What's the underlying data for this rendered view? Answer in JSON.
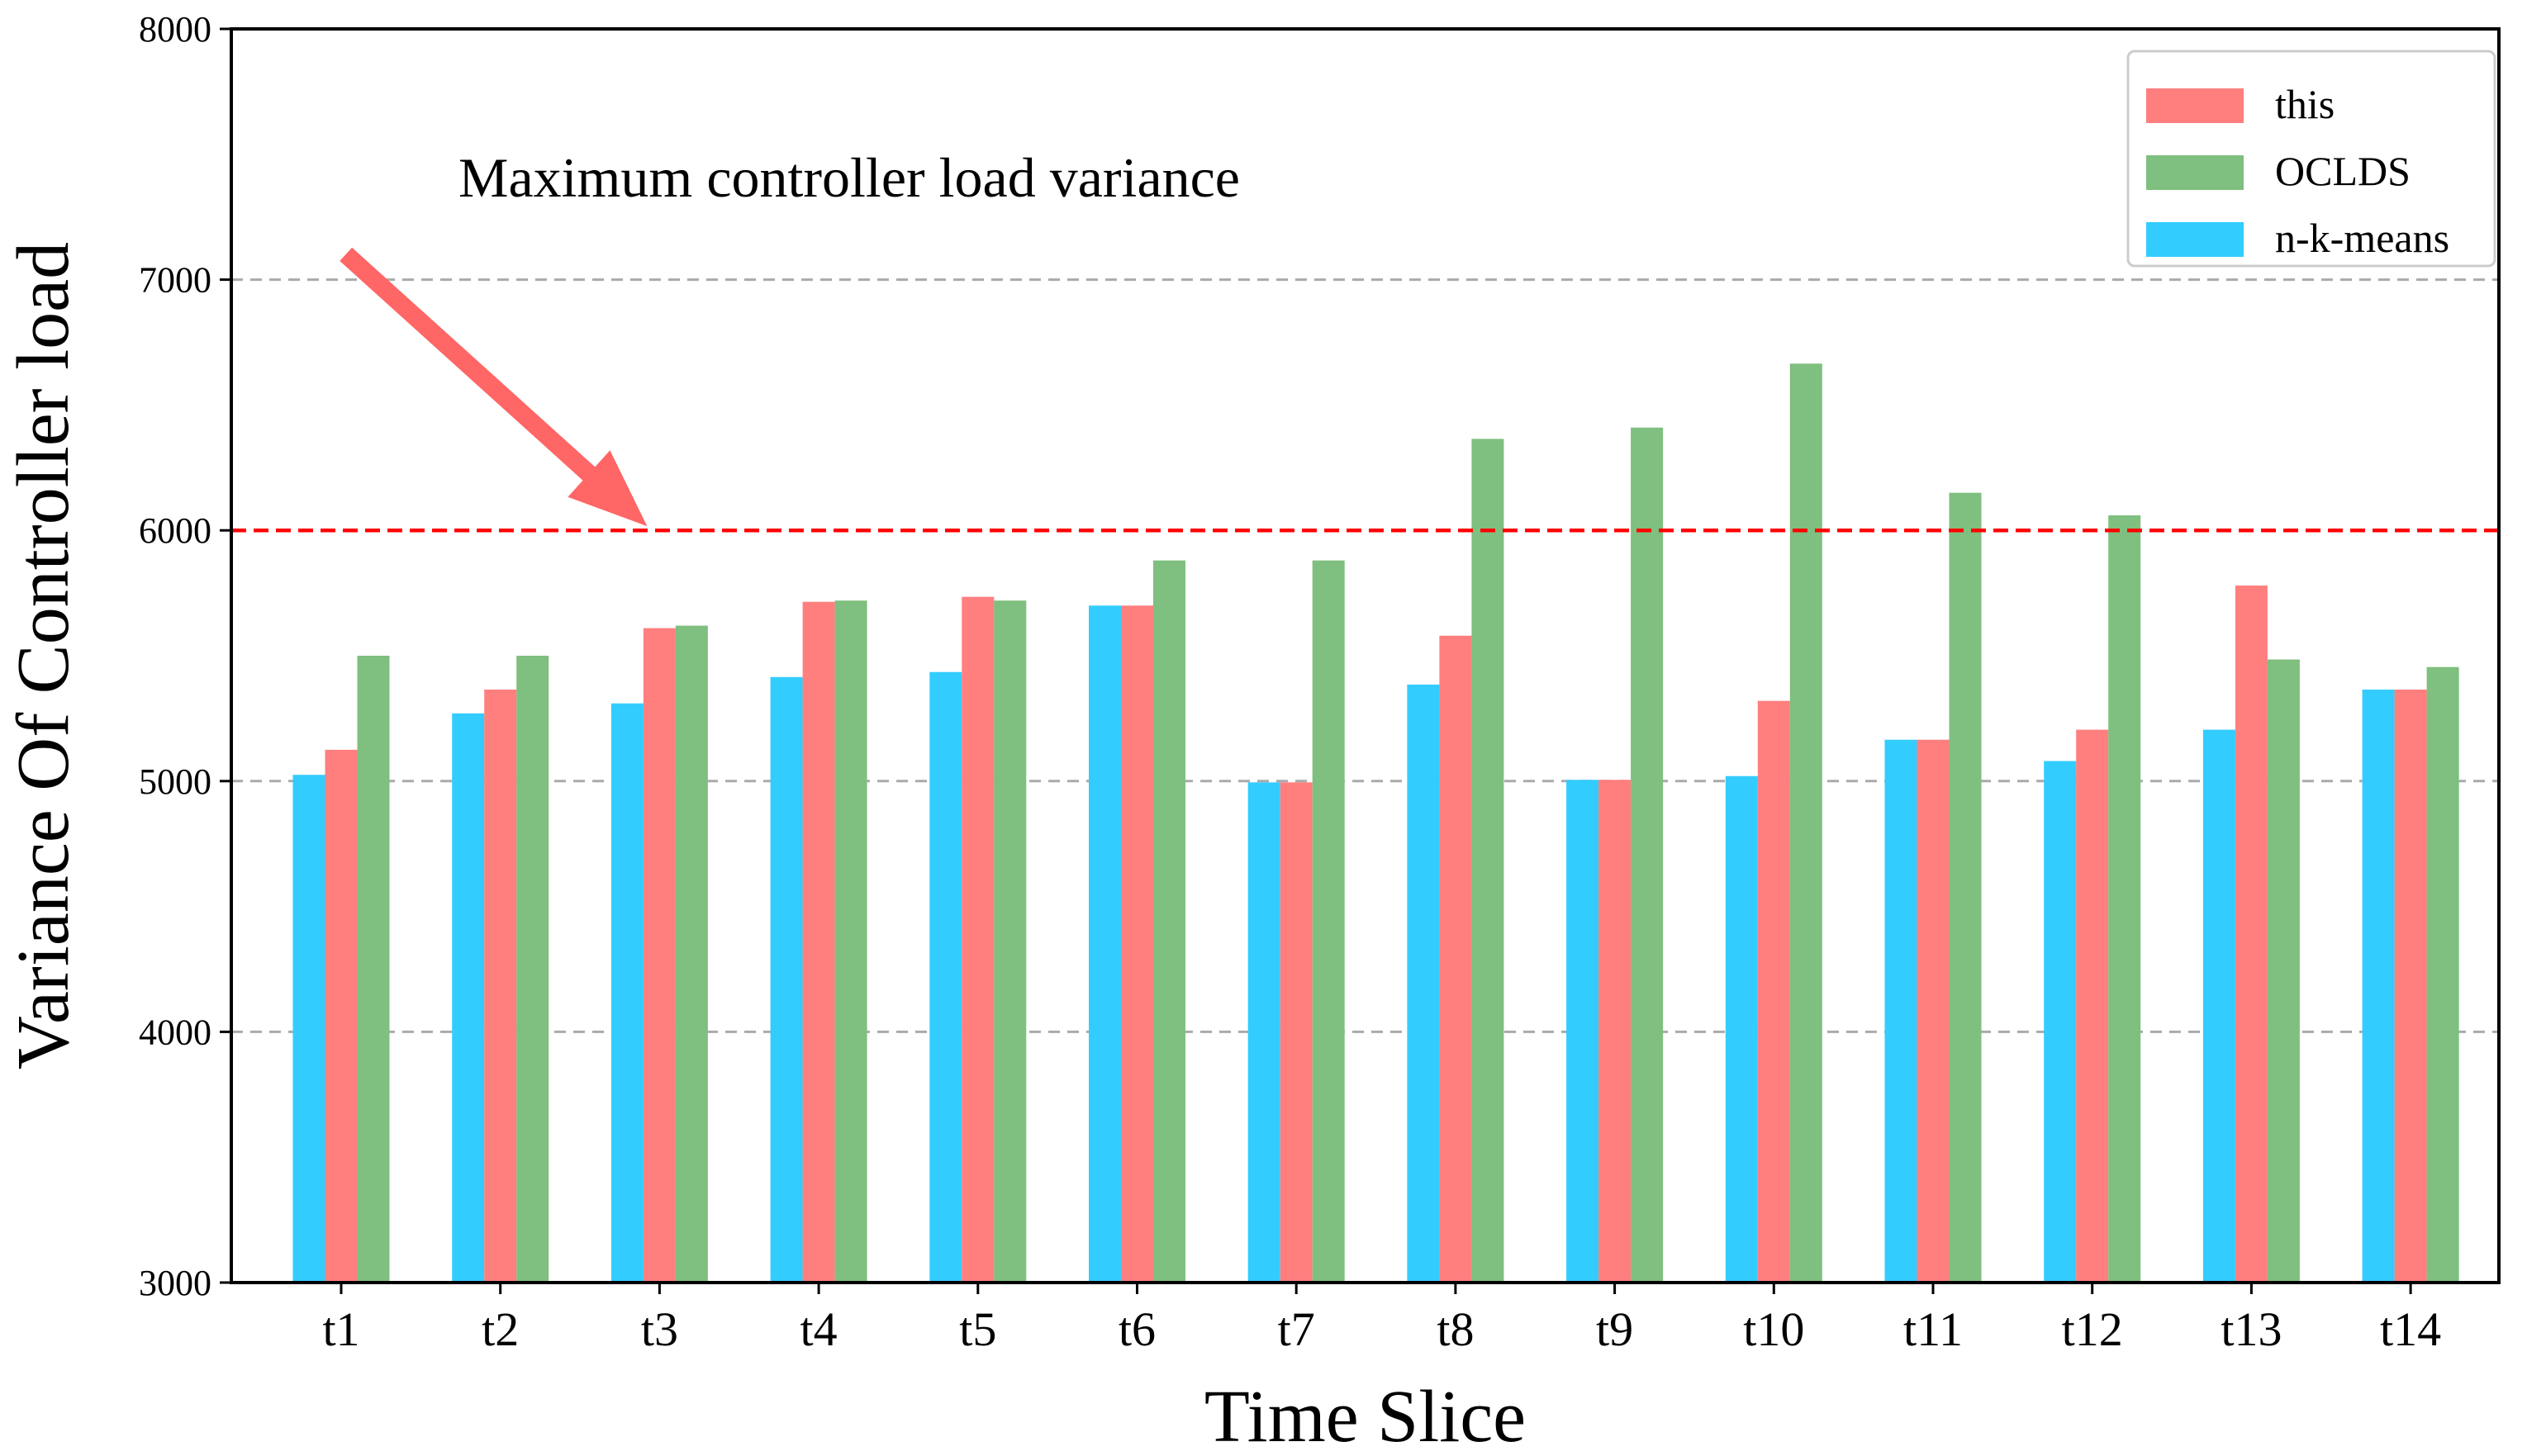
{
  "chart_data": {
    "type": "bar",
    "title": "",
    "xlabel": "Time Slice",
    "ylabel": "Variance Of Controller load",
    "ylim": [
      3000,
      8000
    ],
    "yticks": [
      3000,
      4000,
      5000,
      6000,
      7000,
      8000
    ],
    "grid_lines": [
      4000,
      5000,
      7000
    ],
    "grid": "dashed horizontal at 4000, 5000, 7000",
    "categories": [
      "t1",
      "t2",
      "t3",
      "t4",
      "t5",
      "t6",
      "t7",
      "t8",
      "t9",
      "t10",
      "t11",
      "t12",
      "t13",
      "t14"
    ],
    "series": [
      {
        "name": "n-k-means",
        "color": "#33ccff",
        "values": [
          5025,
          5270,
          5310,
          5415,
          5435,
          5700,
          4995,
          5385,
          5005,
          5020,
          5165,
          5080,
          5205,
          5365
        ]
      },
      {
        "name": "this",
        "color": "#ff7f7f",
        "values": [
          5125,
          5365,
          5610,
          5715,
          5735,
          5700,
          4995,
          5580,
          5005,
          5320,
          5165,
          5205,
          5780,
          5365
        ]
      },
      {
        "name": "OCLDS",
        "color": "#7fbf7f",
        "values": [
          5500,
          5500,
          5620,
          5720,
          5720,
          5880,
          5880,
          6365,
          6410,
          6665,
          6150,
          6060,
          5485,
          5455
        ]
      }
    ],
    "legend": {
      "position": "top-right",
      "order": [
        "this",
        "OCLDS",
        "n-k-means"
      ]
    },
    "threshold": {
      "value": 6000,
      "color": "#ff0000",
      "style": "dashed"
    },
    "annotation": {
      "text": "Maximum controller load variance",
      "arrow_color": "#ff6666",
      "arrow_from": {
        "category_index": 1,
        "value": 7200
      },
      "arrow_to": {
        "category_index": 2,
        "value": 6000
      }
    }
  }
}
